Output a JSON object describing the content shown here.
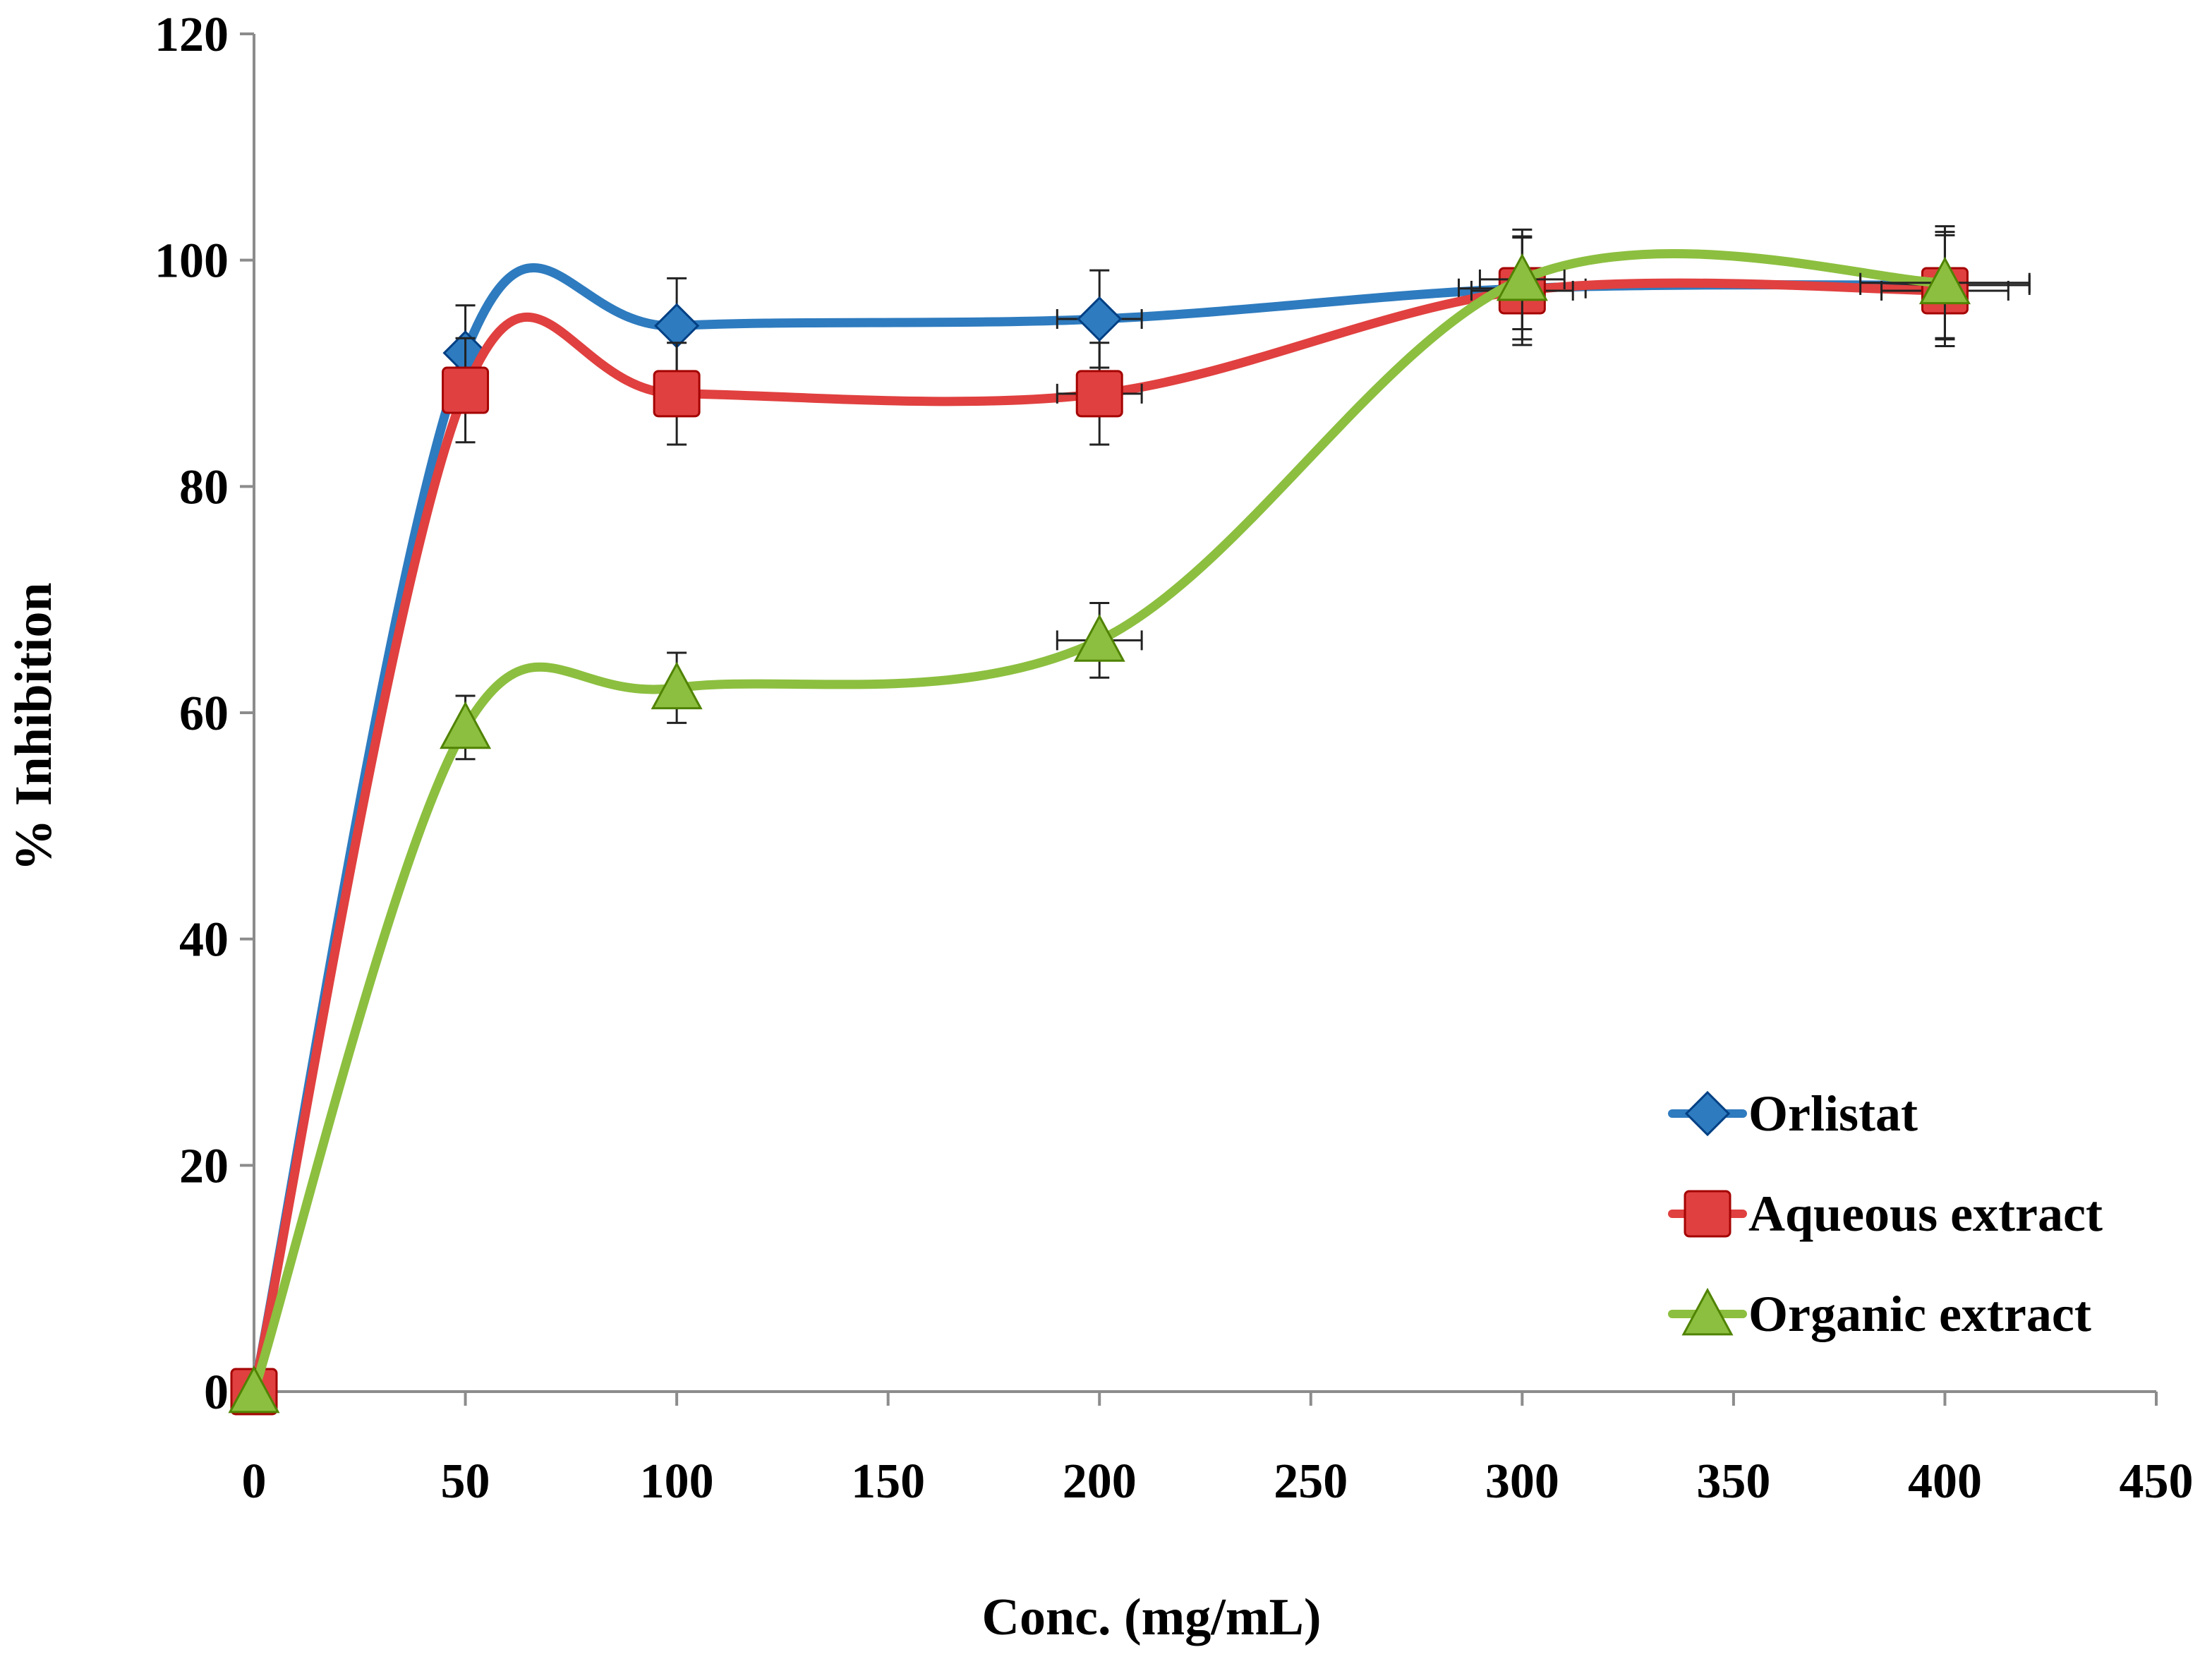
{
  "chart_data": {
    "type": "line",
    "title": "",
    "xlabel": "Conc. (mg/mL)",
    "ylabel": "% Inhibition",
    "xlim": [
      0,
      450
    ],
    "ylim": [
      0,
      120
    ],
    "x_ticks": [
      0,
      50,
      100,
      150,
      200,
      250,
      300,
      350,
      400,
      450
    ],
    "y_ticks": [
      0,
      20,
      40,
      60,
      80,
      100,
      120
    ],
    "grid": false,
    "smoothed": true,
    "legend_position": "bottom-right",
    "series": [
      {
        "name": "Orlistat",
        "marker": "diamond",
        "color": "#2E7BBF",
        "x": [
          0,
          50,
          100,
          200,
          300,
          400
        ],
        "y": [
          0,
          91.8,
          94.2,
          94.8,
          97.5,
          97.8
        ],
        "y_err": [
          0,
          4.2,
          4.2,
          4.3,
          4.5,
          4.7
        ],
        "x_err": [
          0,
          0,
          0,
          10,
          15,
          20
        ]
      },
      {
        "name": "Aqueous extract",
        "marker": "square",
        "color": "#E0403F",
        "x": [
          0,
          50,
          100,
          200,
          300,
          400
        ],
        "y": [
          0,
          88.5,
          88.2,
          88.2,
          97.3,
          97.3
        ],
        "y_err": [
          0,
          4.6,
          4.5,
          4.5,
          4.8,
          4.9
        ],
        "x_err": [
          0,
          0,
          0,
          10,
          12,
          15
        ]
      },
      {
        "name": "Organic extract",
        "marker": "triangle",
        "color": "#8CBF3F",
        "x": [
          0,
          50,
          100,
          200,
          300,
          400
        ],
        "y": [
          0,
          58.7,
          62.2,
          66.4,
          98.3,
          98.0
        ],
        "y_err": [
          0,
          2.8,
          3.1,
          3.3,
          4.4,
          5.0
        ],
        "x_err": [
          0,
          0,
          0,
          10,
          10,
          20
        ]
      }
    ]
  }
}
